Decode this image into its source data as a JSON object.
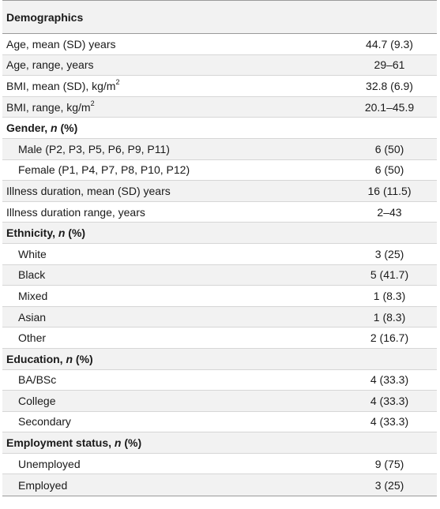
{
  "table": {
    "header": "Demographics",
    "rows": [
      {
        "label": "Age, mean (SD) years",
        "value": "44.7 (9.3)",
        "type": "plain"
      },
      {
        "label": "Age, range, years",
        "value": "29–61",
        "type": "plain"
      },
      {
        "label": "BMI, mean (SD), kg/m",
        "sup": "2",
        "value": "32.8 (6.9)",
        "type": "plain"
      },
      {
        "label": "BMI, range, kg/m",
        "sup": "2",
        "value": "20.1–45.9",
        "type": "plain"
      },
      {
        "label": "Gender, ",
        "label_italic": "n",
        "label_tail": " (%)",
        "value": "",
        "type": "section"
      },
      {
        "label": "Male (P2, P3, P5, P6, P9, P11)",
        "value": "6 (50)",
        "type": "indent"
      },
      {
        "label": "Female (P1, P4, P7, P8, P10, P12)",
        "value": "6 (50)",
        "type": "indent"
      },
      {
        "label": "Illness duration, mean (SD) years",
        "value": "16 (11.5)",
        "type": "plain"
      },
      {
        "label": "Illness duration range, years",
        "value": "2–43",
        "type": "plain"
      },
      {
        "label": "Ethnicity, ",
        "label_italic": "n",
        "label_tail": " (%)",
        "value": "",
        "type": "section"
      },
      {
        "label": "White",
        "value": "3 (25)",
        "type": "indent"
      },
      {
        "label": "Black",
        "value": "5 (41.7)",
        "type": "indent"
      },
      {
        "label": "Mixed",
        "value": "1 (8.3)",
        "type": "indent"
      },
      {
        "label": "Asian",
        "value": "1 (8.3)",
        "type": "indent"
      },
      {
        "label": "Other",
        "value": "2 (16.7)",
        "type": "indent"
      },
      {
        "label": "Education, ",
        "label_italic": "n",
        "label_tail": " (%)",
        "value": "",
        "type": "section"
      },
      {
        "label": "BA/BSc",
        "value": "4 (33.3)",
        "type": "indent"
      },
      {
        "label": "College",
        "value": "4 (33.3)",
        "type": "indent"
      },
      {
        "label": "Secondary",
        "value": "4 (33.3)",
        "type": "indent"
      },
      {
        "label": "Employment status, ",
        "label_italic": "n",
        "label_tail": " (%)",
        "value": "",
        "type": "section"
      },
      {
        "label": "Unemployed",
        "value": "9 (75)",
        "type": "indent"
      },
      {
        "label": "Employed",
        "value": "3 (25)",
        "type": "indent"
      }
    ]
  }
}
